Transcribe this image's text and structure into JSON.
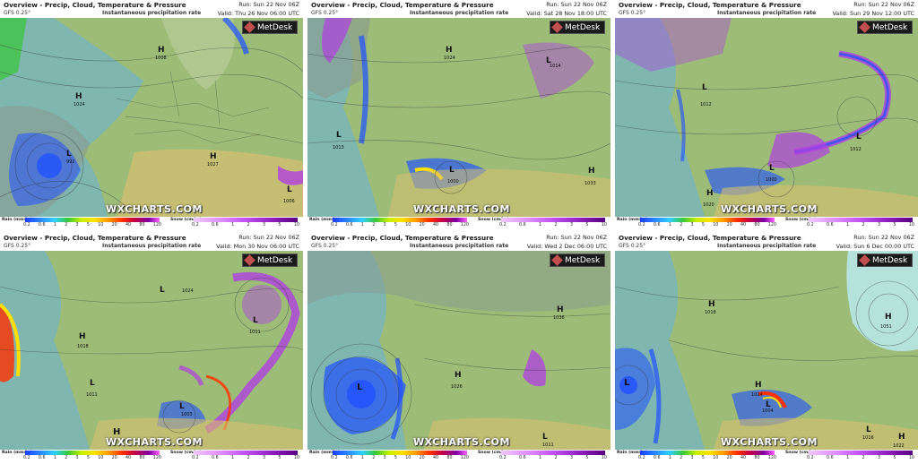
{
  "common": {
    "title": "Overview - Precip, Cloud, Temperature & Pressure",
    "model": "GFS 0.25°",
    "subtitle": "Instantaneous precipitation rate",
    "brand": "WXCHARTS.COM",
    "logo": "MetDesk",
    "rain_label": "Rain (mm/hr)",
    "snow_label": "Snow (cm/hr)",
    "rain_ticks": [
      "0.2",
      "0.6",
      "1",
      "2",
      "3",
      "5",
      "10",
      "20",
      "40",
      "80",
      "120"
    ],
    "snow_ticks": [
      "0.2",
      "0.6",
      "1",
      "2",
      "3",
      "5",
      "10"
    ]
  },
  "colors": {
    "land": "#9cbc78",
    "sea": "#7fb6b0",
    "cloud": "#8a9a90",
    "rain": "#2050ff",
    "snow": "#b040e0",
    "warm": "#d8c070"
  },
  "panels": [
    {
      "run": "Run: Sun 22 Nov 06Z",
      "valid": "Valid: Thu 26 Nov 06:00 UTC",
      "pressure_centres": [
        {
          "type": "H",
          "value": "1008"
        },
        {
          "type": "H",
          "value": "1024"
        },
        {
          "type": "L",
          "value": "992"
        },
        {
          "type": "H",
          "value": "1027"
        },
        {
          "type": "L",
          "value": "1006"
        }
      ]
    },
    {
      "run": "Run: Sun 22 Nov 06Z",
      "valid": "Valid: Sat 28 Nov 18:00 UTC",
      "pressure_centres": [
        {
          "type": "H",
          "value": "1024"
        },
        {
          "type": "L",
          "value": "1014"
        },
        {
          "type": "L",
          "value": "1013"
        },
        {
          "type": "L",
          "value": "1000"
        },
        {
          "type": "H",
          "value": "1033"
        }
      ]
    },
    {
      "run": "Run: Sun 22 Nov 06Z",
      "valid": "Valid: Sun 29 Nov 12:00 UTC",
      "pressure_centres": [
        {
          "type": "L",
          "value": "1012"
        },
        {
          "type": "L",
          "value": "1012"
        },
        {
          "type": "L",
          "value": "1000"
        },
        {
          "type": "H",
          "value": "1020"
        }
      ]
    },
    {
      "run": "Run: Sun 22 Nov 06Z",
      "valid": "Valid: Mon 30 Nov 06:00 UTC",
      "pressure_centres": [
        {
          "type": "L",
          "value": "1024"
        },
        {
          "type": "L",
          "value": "1011"
        },
        {
          "type": "H",
          "value": "1018"
        },
        {
          "type": "L",
          "value": "1011"
        },
        {
          "type": "L",
          "value": "1003"
        },
        {
          "type": "H",
          "value": ""
        }
      ]
    },
    {
      "run": "Run: Sun 22 Nov 06Z",
      "valid": "Valid: Wed 2 Dec 06:00 UTC",
      "pressure_centres": [
        {
          "type": "H",
          "value": "1036"
        },
        {
          "type": "L",
          "value": ""
        },
        {
          "type": "H",
          "value": "1026"
        },
        {
          "type": "L",
          "value": "1011"
        }
      ]
    },
    {
      "run": "Run: Sun 22 Nov 06Z",
      "valid": "Valid: Sun 6 Dec 00:00 UTC",
      "pressure_centres": [
        {
          "type": "H",
          "value": "1051"
        },
        {
          "type": "H",
          "value": "1018"
        },
        {
          "type": "L",
          "value": ""
        },
        {
          "type": "H",
          "value": "1024"
        },
        {
          "type": "L",
          "value": "1004"
        },
        {
          "type": "L",
          "value": "1016"
        },
        {
          "type": "H",
          "value": "1022"
        }
      ]
    }
  ]
}
